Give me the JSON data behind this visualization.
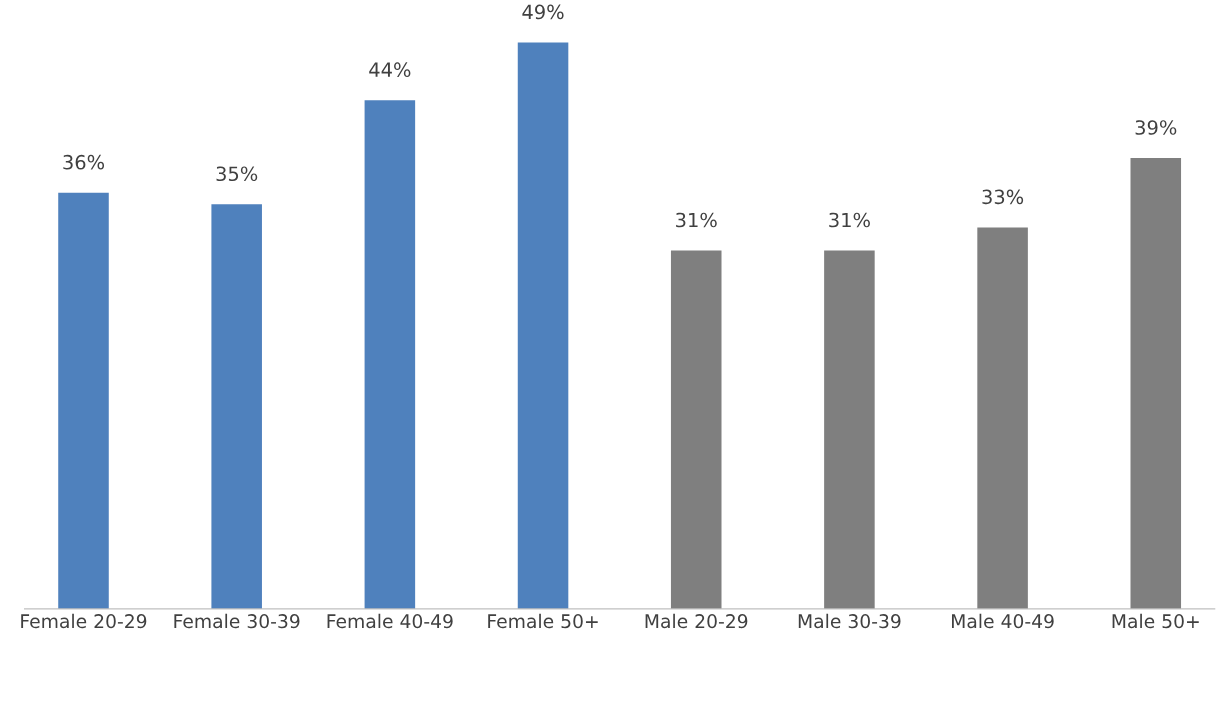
{
  "chart_data": {
    "type": "bar",
    "categories": [
      "Female 20-29",
      "Female 30-39",
      "Female 40-49",
      "Female 50+",
      "Male 20-29",
      "Male 30-39",
      "Male 40-49",
      "Male 50+"
    ],
    "values": [
      36,
      35,
      44,
      49,
      31,
      31,
      33,
      39
    ],
    "colors": [
      "#4f81bd",
      "#4f81bd",
      "#4f81bd",
      "#4f81bd",
      "#7f7f7f",
      "#7f7f7f",
      "#7f7f7f",
      "#7f7f7f"
    ],
    "value_labels": [
      "36%",
      "35%",
      "44%",
      "49%",
      "31%",
      "31%",
      "33%",
      "39%"
    ],
    "grid": false,
    "legend": false,
    "tick_labels": "x"
  }
}
